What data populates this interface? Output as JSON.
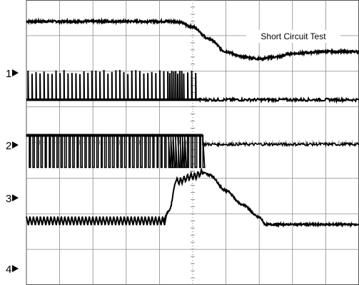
{
  "chart_data": {
    "type": "line",
    "title": "Short Circuit Test",
    "xlabel": "",
    "ylabel": "",
    "grid": true,
    "grid_divisions": {
      "x": 10,
      "y": 8
    },
    "series": [
      {
        "channel": "1",
        "x": [
          0,
          4.5,
          5,
          5.5,
          6,
          6.5,
          7,
          7.5,
          8,
          9,
          10
        ],
        "y": [
          3.4,
          3.4,
          3.25,
          2.9,
          2.55,
          2.4,
          2.35,
          2.4,
          2.5,
          2.55,
          2.55
        ]
      },
      {
        "channel": "2",
        "baseline": 1.2,
        "pulse_height": 0.8,
        "switching_until": 5.2,
        "y_after": 1.2
      },
      {
        "channel": "3",
        "high": 0.2,
        "low": -0.7,
        "switching_until": 5.3,
        "y_after": -0.05
      },
      {
        "channel": "4",
        "x": [
          0,
          4.1,
          4.3,
          4.5,
          5.0,
          5.3,
          5.5,
          6.0,
          6.5,
          7.0,
          7.2,
          10
        ],
        "y": [
          -2.2,
          -2.2,
          -1.9,
          -1.1,
          -0.95,
          -0.85,
          -0.9,
          -1.35,
          -1.75,
          -2.1,
          -2.3,
          -2.3
        ],
        "ripple_until": 4.1
      }
    ]
  },
  "channels": [
    {
      "label": "1"
    },
    {
      "label": "2"
    },
    {
      "label": "3"
    },
    {
      "label": "4"
    }
  ]
}
